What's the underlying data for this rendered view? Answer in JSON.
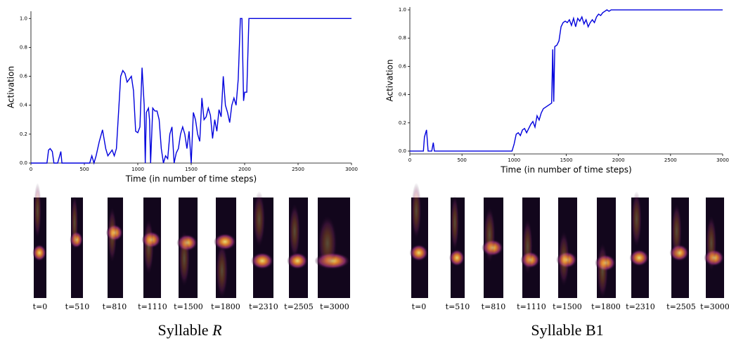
{
  "chart_data": [
    {
      "type": "line",
      "xlabel": "Time (in number of time steps)",
      "ylabel": "Activation",
      "xlim": [
        0,
        3000
      ],
      "xticks": [
        0,
        500,
        1000,
        1500,
        2000,
        2500,
        3000
      ],
      "ylim": [
        0,
        1.05
      ],
      "yticks": [
        {
          "value": 0,
          "label": "0.0"
        },
        {
          "value": 0.2,
          "label": "0.2"
        },
        {
          "value": 0.4,
          "label": "0.4"
        },
        {
          "value": 0.6,
          "label": "0.6"
        },
        {
          "value": 0.8,
          "label": "0.8"
        },
        {
          "value": 1,
          "label": "1.0"
        }
      ],
      "series": [
        {
          "color": "#0000dd",
          "x": [
            0,
            150,
            165,
            180,
            200,
            215,
            250,
            265,
            280,
            290,
            550,
            570,
            590,
            610,
            640,
            670,
            700,
            720,
            740,
            760,
            780,
            800,
            820,
            840,
            860,
            880,
            900,
            920,
            940,
            960,
            980,
            1000,
            1020,
            1040,
            1060,
            1070,
            1080,
            1100,
            1110,
            1120,
            1140,
            1160,
            1180,
            1200,
            1220,
            1240,
            1260,
            1280,
            1300,
            1320,
            1340,
            1360,
            1380,
            1400,
            1420,
            1440,
            1460,
            1480,
            1500,
            1520,
            1540,
            1560,
            1580,
            1600,
            1620,
            1640,
            1660,
            1680,
            1700,
            1720,
            1740,
            1760,
            1780,
            1800,
            1820,
            1840,
            1860,
            1880,
            1900,
            1920,
            1940,
            1960,
            1975,
            1990,
            2000,
            2020,
            2040,
            3000
          ],
          "values": [
            0,
            0,
            0.09,
            0.1,
            0.08,
            0,
            0,
            0.04,
            0.08,
            0,
            0,
            0.05,
            0,
            0.05,
            0.15,
            0.23,
            0.1,
            0.05,
            0.07,
            0.09,
            0.05,
            0.1,
            0.35,
            0.6,
            0.64,
            0.62,
            0.56,
            0.58,
            0.6,
            0.5,
            0.22,
            0.21,
            0.25,
            0.66,
            0.4,
            0,
            0.35,
            0.38,
            0.3,
            0,
            0.38,
            0.36,
            0.36,
            0.3,
            0.1,
            0,
            0.05,
            0.03,
            0.2,
            0.25,
            0,
            0.07,
            0.1,
            0.2,
            0.25,
            0.2,
            0.1,
            0.22,
            0,
            0.35,
            0.3,
            0.2,
            0.15,
            0.45,
            0.3,
            0.32,
            0.38,
            0.33,
            0.17,
            0.3,
            0.22,
            0.37,
            0.32,
            0.6,
            0.4,
            0.35,
            0.28,
            0.4,
            0.45,
            0.4,
            0.58,
            1,
            1,
            0.43,
            0.49,
            0.49,
            1,
            1
          ]
        }
      ]
    },
    {
      "type": "line",
      "xlabel": "Time (in number of time steps)",
      "ylabel": "Activation",
      "xlim": [
        0,
        3000
      ],
      "xticks": [
        0,
        500,
        1000,
        1500,
        2000,
        2500,
        3000
      ],
      "ylim": [
        -0.02,
        1.02
      ],
      "yticks": [
        {
          "value": 0,
          "label": "0.0"
        },
        {
          "value": 0.2,
          "label": "0.2"
        },
        {
          "value": 0.4,
          "label": "0.4"
        },
        {
          "value": 0.6,
          "label": "0.6"
        },
        {
          "value": 0.8,
          "label": "0.8"
        },
        {
          "value": 1,
          "label": "1.0"
        }
      ],
      "series": [
        {
          "color": "#0000dd",
          "x": [
            0,
            130,
            140,
            160,
            175,
            210,
            225,
            235,
            980,
            1000,
            1020,
            1040,
            1060,
            1080,
            1100,
            1120,
            1140,
            1160,
            1180,
            1200,
            1220,
            1240,
            1260,
            1280,
            1300,
            1320,
            1340,
            1360,
            1370,
            1380,
            1390,
            1410,
            1430,
            1450,
            1470,
            1490,
            1510,
            1530,
            1550,
            1570,
            1590,
            1610,
            1630,
            1650,
            1670,
            1690,
            1710,
            1730,
            1750,
            1770,
            1790,
            1810,
            1830,
            1850,
            1870,
            1890,
            1910,
            1930,
            3000
          ],
          "values": [
            0,
            0,
            0.1,
            0.15,
            0,
            0,
            0.06,
            0,
            0,
            0.05,
            0.12,
            0.13,
            0.11,
            0.15,
            0.16,
            0.13,
            0.16,
            0.19,
            0.21,
            0.17,
            0.25,
            0.22,
            0.27,
            0.3,
            0.31,
            0.32,
            0.33,
            0.34,
            0.72,
            0.35,
            0.74,
            0.75,
            0.78,
            0.88,
            0.91,
            0.92,
            0.91,
            0.93,
            0.89,
            0.94,
            0.88,
            0.94,
            0.92,
            0.95,
            0.9,
            0.93,
            0.88,
            0.91,
            0.93,
            0.91,
            0.95,
            0.97,
            0.96,
            0.98,
            0.99,
            1,
            0.99,
            1,
            1
          ]
        }
      ]
    }
  ],
  "panels": [
    {
      "time_labels": [
        "t=0",
        "t=510",
        "t=810",
        "t=1110",
        "t=1500",
        "t=1800",
        "t=2310",
        "t=2505",
        "t=3000"
      ],
      "caption": "Syllable",
      "caption_var": "R"
    },
    {
      "time_labels": [
        "t=0",
        "t=510",
        "t=810",
        "t=1110",
        "t=1500",
        "t=1800",
        "t=2310",
        "t=2505",
        "t=3000"
      ],
      "caption": "Syllable",
      "caption_var": "B1"
    }
  ]
}
